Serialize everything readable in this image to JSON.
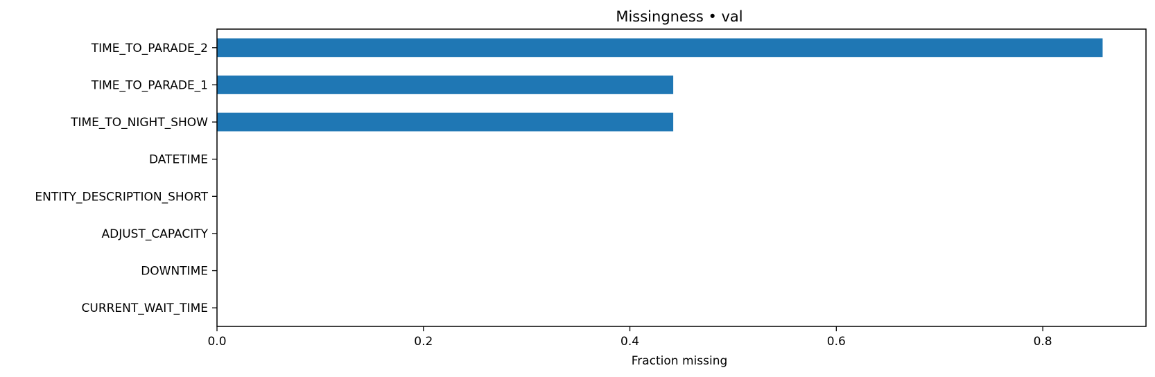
{
  "chart_data": {
    "type": "bar",
    "orientation": "horizontal",
    "title": "Missingness • val",
    "xlabel": "Fraction missing",
    "ylabel": "",
    "categories": [
      "TIME_TO_PARADE_2",
      "TIME_TO_PARADE_1",
      "TIME_TO_NIGHT_SHOW",
      "DATETIME",
      "ENTITY_DESCRIPTION_SHORT",
      "ADJUST_CAPACITY",
      "DOWNTIME",
      "CURRENT_WAIT_TIME"
    ],
    "values": [
      0.858,
      0.442,
      0.442,
      0,
      0,
      0,
      0,
      0
    ],
    "xlim": [
      0,
      0.9
    ],
    "xticks": [
      "0.0",
      "0.2",
      "0.4",
      "0.6",
      "0.8"
    ],
    "xtick_values": [
      0,
      0.2,
      0.4,
      0.6,
      0.8
    ],
    "bar_color": "#1f77b4",
    "grid": false,
    "legend": "none"
  }
}
